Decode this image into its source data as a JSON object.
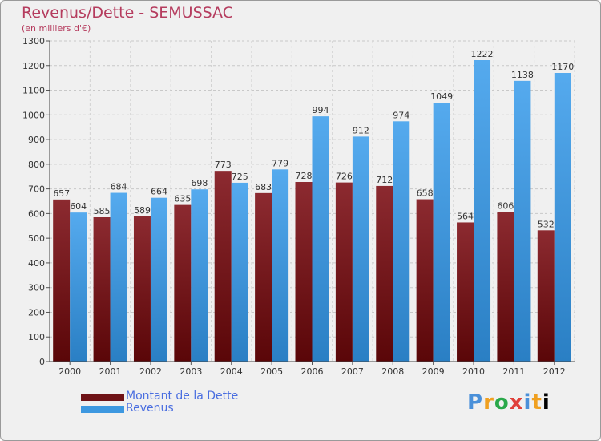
{
  "chart_data": {
    "type": "bar",
    "title": "Revenus/Dette - SEMUSSAC",
    "subtitle": "(en milliers d'€)",
    "categories": [
      "2000",
      "2001",
      "2002",
      "2003",
      "2004",
      "2005",
      "2006",
      "2007",
      "2008",
      "2009",
      "2010",
      "2011",
      "2012"
    ],
    "series": [
      {
        "name": "Montant de la Dette",
        "color": "#7a1a1e",
        "values": [
          657,
          585,
          589,
          635,
          773,
          683,
          728,
          726,
          712,
          658,
          564,
          606,
          532
        ]
      },
      {
        "name": "Revenus",
        "color": "#3d98e0",
        "values": [
          604,
          684,
          664,
          698,
          725,
          779,
          994,
          912,
          974,
          1049,
          1222,
          1138,
          1170
        ]
      }
    ],
    "ylim": [
      0,
      1300
    ],
    "ytick_step": 100,
    "grid": true,
    "legend_position": "bottom-left"
  },
  "logo": {
    "letters": [
      "P",
      "r",
      "o",
      "x",
      "i",
      "t",
      "i"
    ]
  }
}
